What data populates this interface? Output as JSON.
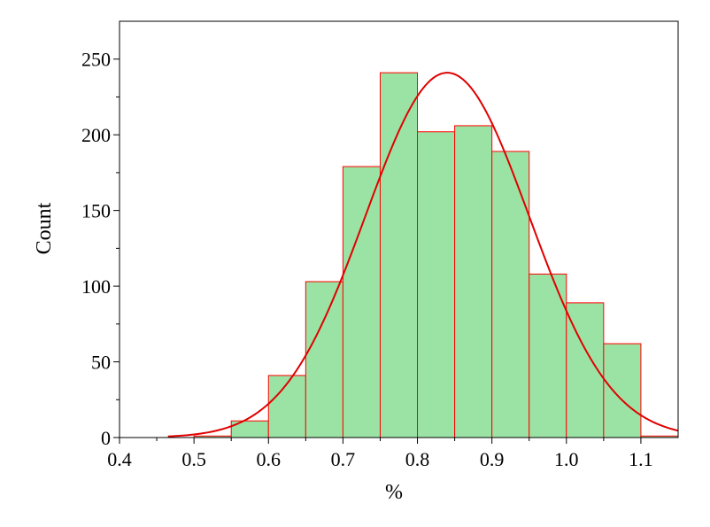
{
  "chart_data": {
    "type": "bar",
    "title": "",
    "xlabel": "%",
    "ylabel": "Count",
    "xlim": [
      0.4,
      1.15
    ],
    "ylim": [
      0,
      275
    ],
    "x_ticks": [
      0.4,
      0.5,
      0.6,
      0.7,
      0.8,
      0.9,
      1.0,
      1.1
    ],
    "x_tick_labels": [
      "0.4",
      "0.5",
      "0.6",
      "0.7",
      "0.8",
      "0.9",
      "1.0",
      "1.1"
    ],
    "y_ticks": [
      0,
      50,
      100,
      150,
      200,
      250
    ],
    "y_tick_labels": [
      "0",
      "50",
      "100",
      "150",
      "200",
      "250"
    ],
    "y_minor_ticks": [
      25,
      75,
      125,
      175,
      225
    ],
    "bin_edges": [
      0.5,
      0.55,
      0.6,
      0.65,
      0.7,
      0.75,
      0.8,
      0.85,
      0.9,
      0.95,
      1.0,
      1.05,
      1.1,
      1.15
    ],
    "counts": [
      1,
      11,
      41,
      103,
      179,
      241,
      202,
      206,
      189,
      108,
      89,
      62,
      1
    ],
    "fit_curve": {
      "type": "normal",
      "mean": 0.84,
      "sd": 0.11,
      "peak": 241,
      "x_start": 0.465
    },
    "grid": false,
    "colors": {
      "bar_fill": "#9be3a5",
      "bar_edge": "#ff0000",
      "fit_line": "#e00000",
      "axis": "#000000"
    }
  }
}
